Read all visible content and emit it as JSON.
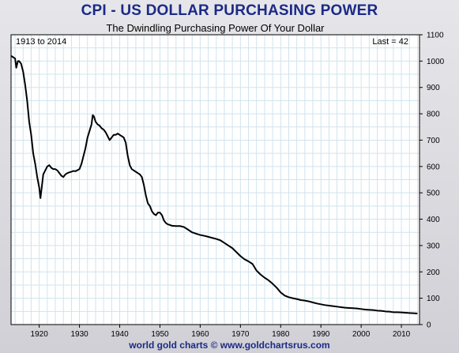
{
  "header": {
    "title": "CPI - US DOLLAR PURCHASING POWER",
    "subtitle": "The Dwindling Purchasing Power Of Your Dollar",
    "footer": "world gold charts © www.goldchartsrus.com"
  },
  "chart_data": {
    "type": "line",
    "range_label": "1913 to 2014",
    "last_label": "Last = 42",
    "xlim": [
      1913,
      2014.5
    ],
    "ylim": [
      0,
      1100
    ],
    "x_ticks": [
      1920,
      1930,
      1940,
      1950,
      1960,
      1970,
      1980,
      1990,
      2000,
      2010
    ],
    "y_ticks": [
      0,
      100,
      200,
      300,
      400,
      500,
      600,
      700,
      800,
      900,
      1000,
      1100
    ],
    "grid": true,
    "y_axis_side": "right",
    "series_color": "#000000",
    "series": [
      {
        "name": "",
        "points": [
          [
            1913.0,
            1020
          ],
          [
            1913.5,
            1015
          ],
          [
            1914.0,
            1010
          ],
          [
            1914.3,
            975
          ],
          [
            1914.7,
            1000
          ],
          [
            1915.0,
            1000
          ],
          [
            1915.5,
            990
          ],
          [
            1916.0,
            960
          ],
          [
            1916.5,
            910
          ],
          [
            1917.0,
            850
          ],
          [
            1917.5,
            770
          ],
          [
            1918.0,
            720
          ],
          [
            1918.5,
            650
          ],
          [
            1919.0,
            610
          ],
          [
            1919.5,
            560
          ],
          [
            1920.0,
            520
          ],
          [
            1920.3,
            480
          ],
          [
            1920.7,
            530
          ],
          [
            1921.0,
            570
          ],
          [
            1921.5,
            585
          ],
          [
            1922.0,
            600
          ],
          [
            1922.5,
            605
          ],
          [
            1923.0,
            595
          ],
          [
            1923.5,
            590
          ],
          [
            1924.0,
            590
          ],
          [
            1924.5,
            585
          ],
          [
            1925.0,
            575
          ],
          [
            1925.5,
            565
          ],
          [
            1926.0,
            560
          ],
          [
            1926.5,
            570
          ],
          [
            1927.0,
            575
          ],
          [
            1927.5,
            578
          ],
          [
            1928.0,
            580
          ],
          [
            1928.5,
            583
          ],
          [
            1929.0,
            582
          ],
          [
            1929.5,
            586
          ],
          [
            1930.0,
            590
          ],
          [
            1930.5,
            610
          ],
          [
            1931.0,
            640
          ],
          [
            1931.5,
            670
          ],
          [
            1932.0,
            710
          ],
          [
            1932.5,
            735
          ],
          [
            1933.0,
            760
          ],
          [
            1933.3,
            795
          ],
          [
            1933.6,
            790
          ],
          [
            1934.0,
            770
          ],
          [
            1934.5,
            760
          ],
          [
            1935.0,
            755
          ],
          [
            1935.5,
            745
          ],
          [
            1936.0,
            740
          ],
          [
            1936.5,
            730
          ],
          [
            1937.0,
            715
          ],
          [
            1937.5,
            700
          ],
          [
            1938.0,
            710
          ],
          [
            1938.5,
            720
          ],
          [
            1939.0,
            720
          ],
          [
            1939.5,
            725
          ],
          [
            1940.0,
            720
          ],
          [
            1940.5,
            715
          ],
          [
            1941.0,
            710
          ],
          [
            1941.5,
            690
          ],
          [
            1942.0,
            640
          ],
          [
            1942.5,
            605
          ],
          [
            1943.0,
            590
          ],
          [
            1943.5,
            585
          ],
          [
            1944.0,
            580
          ],
          [
            1944.5,
            575
          ],
          [
            1945.0,
            570
          ],
          [
            1945.5,
            560
          ],
          [
            1946.0,
            530
          ],
          [
            1946.5,
            490
          ],
          [
            1947.0,
            460
          ],
          [
            1947.5,
            450
          ],
          [
            1948.0,
            430
          ],
          [
            1948.5,
            420
          ],
          [
            1949.0,
            415
          ],
          [
            1949.5,
            425
          ],
          [
            1950.0,
            425
          ],
          [
            1950.5,
            415
          ],
          [
            1951.0,
            395
          ],
          [
            1951.5,
            385
          ],
          [
            1952.0,
            380
          ],
          [
            1952.5,
            378
          ],
          [
            1953.0,
            375
          ],
          [
            1954.0,
            374
          ],
          [
            1955.0,
            374
          ],
          [
            1956.0,
            370
          ],
          [
            1957.0,
            360
          ],
          [
            1958.0,
            350
          ],
          [
            1959.0,
            345
          ],
          [
            1960.0,
            340
          ],
          [
            1961.0,
            337
          ],
          [
            1962.0,
            333
          ],
          [
            1963.0,
            329
          ],
          [
            1964.0,
            325
          ],
          [
            1965.0,
            320
          ],
          [
            1966.0,
            310
          ],
          [
            1967.0,
            300
          ],
          [
            1968.0,
            290
          ],
          [
            1969.0,
            275
          ],
          [
            1970.0,
            260
          ],
          [
            1971.0,
            248
          ],
          [
            1972.0,
            240
          ],
          [
            1973.0,
            230
          ],
          [
            1974.0,
            205
          ],
          [
            1975.0,
            190
          ],
          [
            1976.0,
            178
          ],
          [
            1977.0,
            168
          ],
          [
            1978.0,
            155
          ],
          [
            1979.0,
            140
          ],
          [
            1980.0,
            122
          ],
          [
            1981.0,
            110
          ],
          [
            1982.0,
            104
          ],
          [
            1983.0,
            100
          ],
          [
            1984.0,
            97
          ],
          [
            1985.0,
            93
          ],
          [
            1986.0,
            91
          ],
          [
            1987.0,
            88
          ],
          [
            1988.0,
            84
          ],
          [
            1989.0,
            80
          ],
          [
            1990.0,
            77
          ],
          [
            1991.0,
            74
          ],
          [
            1992.0,
            72
          ],
          [
            1993.0,
            70
          ],
          [
            1994.0,
            68
          ],
          [
            1995.0,
            66
          ],
          [
            1996.0,
            64
          ],
          [
            1997.0,
            63
          ],
          [
            1998.0,
            62
          ],
          [
            1999.0,
            61
          ],
          [
            2000.0,
            59
          ],
          [
            2001.0,
            57
          ],
          [
            2002.0,
            56
          ],
          [
            2003.0,
            55
          ],
          [
            2004.0,
            53
          ],
          [
            2005.0,
            52
          ],
          [
            2006.0,
            50
          ],
          [
            2007.0,
            49
          ],
          [
            2008.0,
            47
          ],
          [
            2009.0,
            47
          ],
          [
            2010.0,
            46
          ],
          [
            2011.0,
            45
          ],
          [
            2012.0,
            44
          ],
          [
            2013.0,
            43
          ],
          [
            2014.0,
            42
          ]
        ]
      }
    ]
  }
}
